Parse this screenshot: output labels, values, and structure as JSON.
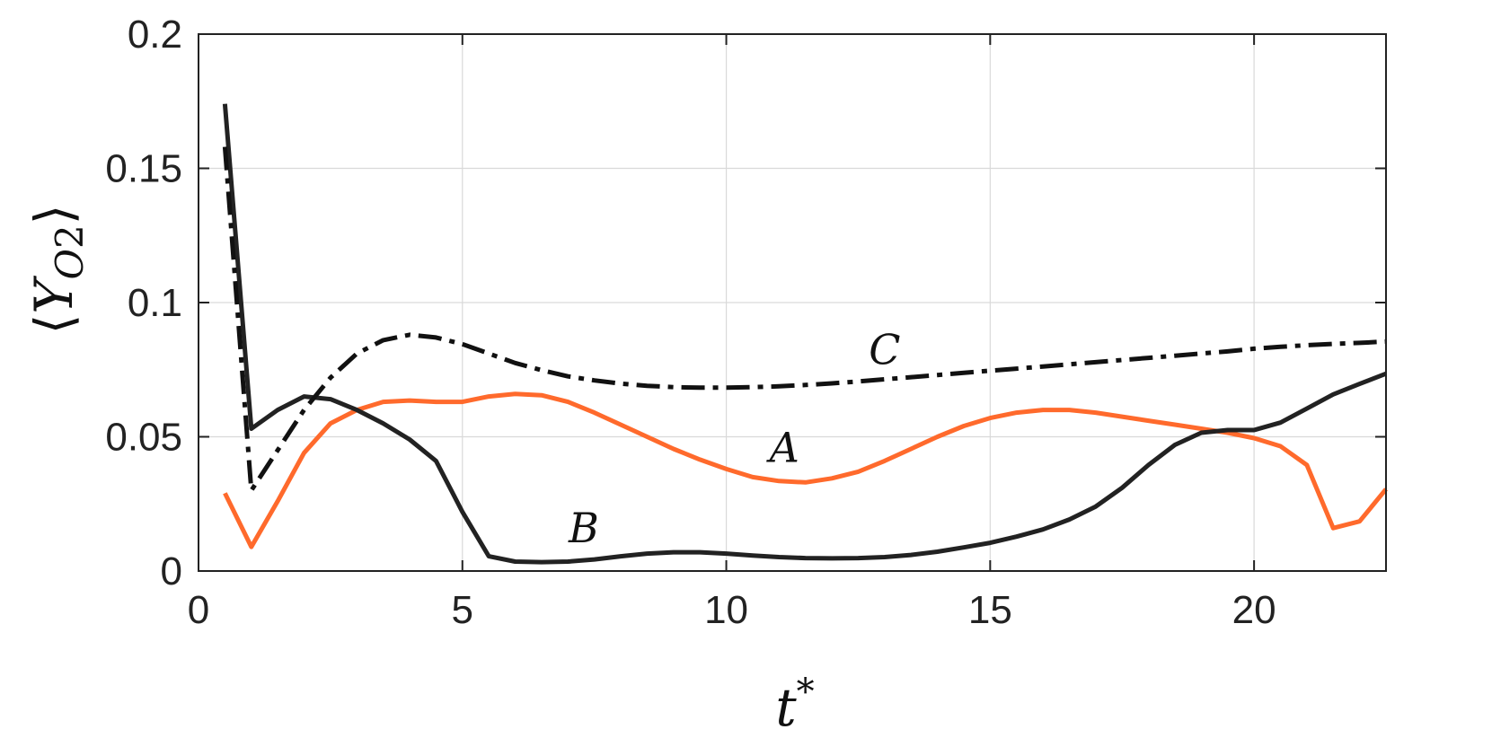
{
  "chart_data": {
    "type": "line",
    "xlabel": "t*",
    "ylabel": "⟨Y_O2⟩",
    "xlim": [
      0,
      22.5
    ],
    "ylim": [
      0,
      0.2
    ],
    "x_ticks": [
      0,
      5,
      10,
      15,
      20
    ],
    "x_tick_labels": [
      "0",
      "5",
      "10",
      "15",
      "20"
    ],
    "y_ticks": [
      0,
      0.05,
      0.1,
      0.15,
      0.2
    ],
    "y_tick_labels": [
      "0",
      "0.05",
      "0.1",
      "0.15",
      "0.2"
    ],
    "grid": true,
    "series": [
      {
        "name": "A",
        "color": "#ff6a2c",
        "style": "solid",
        "label_pos": [
          11.1,
          0.046
        ],
        "x": [
          0.5,
          1,
          1.5,
          2,
          2.5,
          3,
          3.5,
          4,
          4.5,
          5,
          5.5,
          6,
          6.5,
          7,
          7.5,
          8,
          8.5,
          9,
          9.5,
          10,
          10.5,
          11,
          11.5,
          12,
          12.5,
          13,
          13.5,
          14,
          14.5,
          15,
          15.5,
          16,
          16.5,
          17,
          17.5,
          18,
          18.5,
          19,
          19.5,
          20,
          20.5,
          21,
          21.5,
          22,
          22.5
        ],
        "y": [
          0.029,
          0.009,
          0.026,
          0.044,
          0.055,
          0.06,
          0.063,
          0.0635,
          0.063,
          0.063,
          0.065,
          0.066,
          0.0655,
          0.063,
          0.059,
          0.0545,
          0.05,
          0.0455,
          0.0415,
          0.038,
          0.035,
          0.0335,
          0.033,
          0.0345,
          0.037,
          0.041,
          0.0455,
          0.05,
          0.054,
          0.057,
          0.059,
          0.06,
          0.06,
          0.059,
          0.0575,
          0.056,
          0.0545,
          0.053,
          0.0515,
          0.0495,
          0.0465,
          0.0395,
          0.016,
          0.0185,
          0.0305
        ]
      },
      {
        "name": "B",
        "color": "#222222",
        "style": "solid",
        "label_pos": [
          7.3,
          0.016
        ],
        "x": [
          0.5,
          1,
          1.5,
          2,
          2.5,
          3,
          3.5,
          4,
          4.5,
          5,
          5.5,
          6,
          6.5,
          7,
          7.5,
          8,
          8.5,
          9,
          9.5,
          10,
          10.5,
          11,
          11.5,
          12,
          12.5,
          13,
          13.5,
          14,
          14.5,
          15,
          15.5,
          16,
          16.5,
          17,
          17.5,
          18,
          18.5,
          19,
          19.5,
          20,
          20.5,
          21,
          21.5,
          22,
          22.5
        ],
        "y": [
          0.174,
          0.053,
          0.06,
          0.065,
          0.064,
          0.06,
          0.055,
          0.049,
          0.041,
          0.022,
          0.0055,
          0.0035,
          0.0033,
          0.0035,
          0.0043,
          0.0055,
          0.0065,
          0.007,
          0.007,
          0.0065,
          0.0058,
          0.0052,
          0.0048,
          0.0047,
          0.0048,
          0.0052,
          0.006,
          0.0072,
          0.0088,
          0.0105,
          0.0128,
          0.0155,
          0.0192,
          0.024,
          0.031,
          0.0395,
          0.047,
          0.0515,
          0.0525,
          0.0525,
          0.0553,
          0.0605,
          0.0658,
          0.0697,
          0.0735
        ]
      },
      {
        "name": "C",
        "color": "#111111",
        "style": "dashdot",
        "label_pos": [
          13.0,
          0.0825
        ],
        "x": [
          0.5,
          1,
          1.5,
          2,
          2.5,
          3,
          3.5,
          4,
          4.5,
          5,
          5.5,
          6,
          6.5,
          7,
          7.5,
          8,
          8.5,
          9,
          9.5,
          10,
          10.5,
          11,
          11.5,
          12,
          12.5,
          13,
          13.5,
          14,
          14.5,
          15,
          15.5,
          16,
          16.5,
          17,
          17.5,
          18,
          18.5,
          19,
          19.5,
          20,
          20.5,
          21,
          21.5,
          22,
          22.5
        ],
        "y": [
          0.158,
          0.03,
          0.045,
          0.06,
          0.072,
          0.081,
          0.086,
          0.088,
          0.087,
          0.0845,
          0.081,
          0.0775,
          0.0748,
          0.0725,
          0.071,
          0.0698,
          0.069,
          0.0685,
          0.0683,
          0.0683,
          0.0685,
          0.0688,
          0.0693,
          0.0699,
          0.0706,
          0.0714,
          0.0722,
          0.073,
          0.0738,
          0.0746,
          0.0754,
          0.0762,
          0.077,
          0.0778,
          0.0786,
          0.0794,
          0.0802,
          0.081,
          0.0818,
          0.0828,
          0.0835,
          0.0841,
          0.0846,
          0.085,
          0.0855
        ]
      }
    ]
  }
}
